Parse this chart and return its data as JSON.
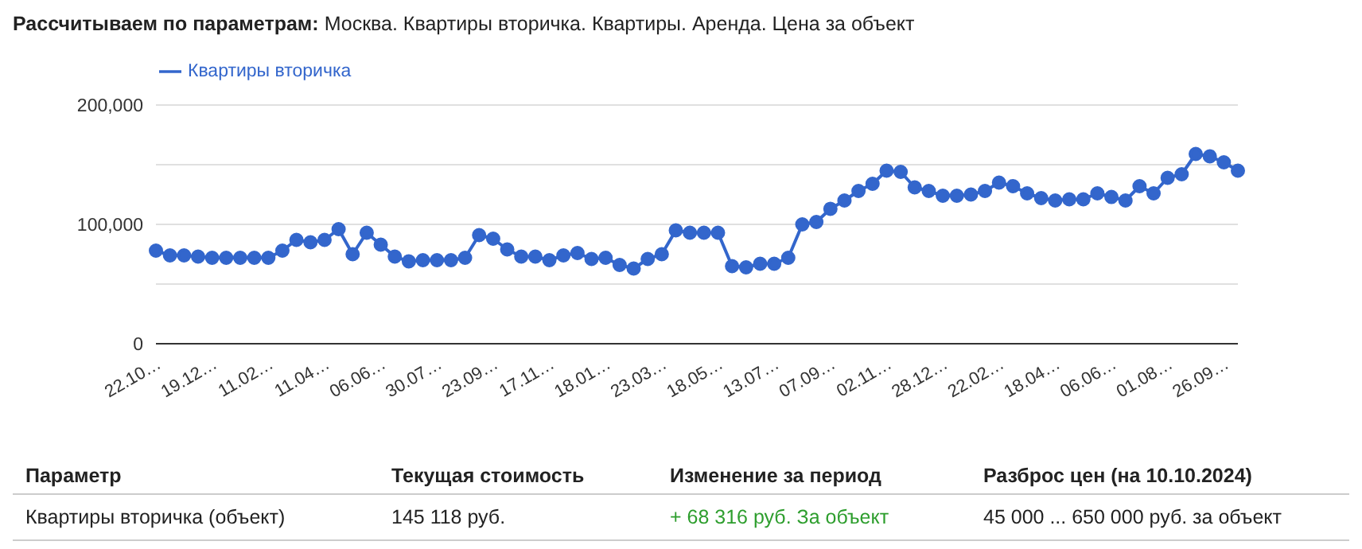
{
  "chart_data": {
    "type": "line",
    "title": "Рассчитываем по параметрам:",
    "subtitle": "Москва. Квартиры вторичка. Квартиры. Аренда. Цена за объект",
    "categories": [
      "22.10…",
      null,
      null,
      null,
      "19.12…",
      null,
      null,
      null,
      "11.02…",
      null,
      null,
      null,
      "11.04…",
      null,
      null,
      null,
      "06.06…",
      null,
      null,
      null,
      "30.07…",
      null,
      null,
      null,
      "23.09…",
      null,
      null,
      null,
      "17.11…",
      null,
      null,
      null,
      "18.01…",
      null,
      null,
      null,
      "23.03…",
      null,
      null,
      null,
      "18.05…",
      null,
      null,
      null,
      "13.07…",
      null,
      null,
      null,
      "07.09…",
      null,
      null,
      null,
      "02.11…",
      null,
      null,
      null,
      "28.12…",
      null,
      null,
      null,
      "22.02…",
      null,
      null,
      null,
      "18.04…",
      null,
      null,
      null,
      "06.06…",
      null,
      null,
      null,
      "01.08…",
      null,
      null,
      null,
      "26.09…",
      null
    ],
    "series": [
      {
        "name": "Квартиры вторичка",
        "color": "#3366cc",
        "values": [
          78000,
          74000,
          74000,
          73000,
          72000,
          72000,
          72000,
          72000,
          72000,
          78000,
          87000,
          85000,
          87000,
          96000,
          75000,
          93000,
          83000,
          73000,
          69000,
          70000,
          70000,
          70000,
          72000,
          91000,
          88000,
          79000,
          73000,
          73000,
          70000,
          74000,
          76000,
          71000,
          72000,
          66000,
          63000,
          71000,
          75000,
          95000,
          93000,
          93000,
          93000,
          65000,
          64000,
          67000,
          67000,
          72000,
          100000,
          102000,
          113000,
          120000,
          128000,
          134000,
          145000,
          144000,
          131000,
          128000,
          124000,
          124000,
          125000,
          128000,
          135000,
          132000,
          126000,
          122000,
          120000,
          121000,
          121000,
          126000,
          123000,
          120000,
          132000,
          126000,
          139000,
          142000,
          159000,
          157000,
          152000,
          145000
        ]
      }
    ],
    "ylim": [
      0,
      200000
    ],
    "yticks": [
      0,
      {
        "value": 50000,
        "label": null
      },
      {
        "value": 100000,
        "label": "100,000"
      },
      {
        "value": 150000,
        "label": null
      },
      {
        "value": 200000,
        "label": "200,000"
      }
    ],
    "grid": "y",
    "legend": "top left",
    "marker": "circle",
    "line_style": "solid",
    "annotations": [
      "Параметр",
      "Текущая стоимость",
      "Изменение за период",
      "Разброс цен (на 10.10.2024)",
      "Квартиры вторичка (объект)",
      "145 118 руб.",
      "+ 68 316 руб. За объект",
      "45 000 ... 650 000 руб. за объект"
    ]
  }
}
